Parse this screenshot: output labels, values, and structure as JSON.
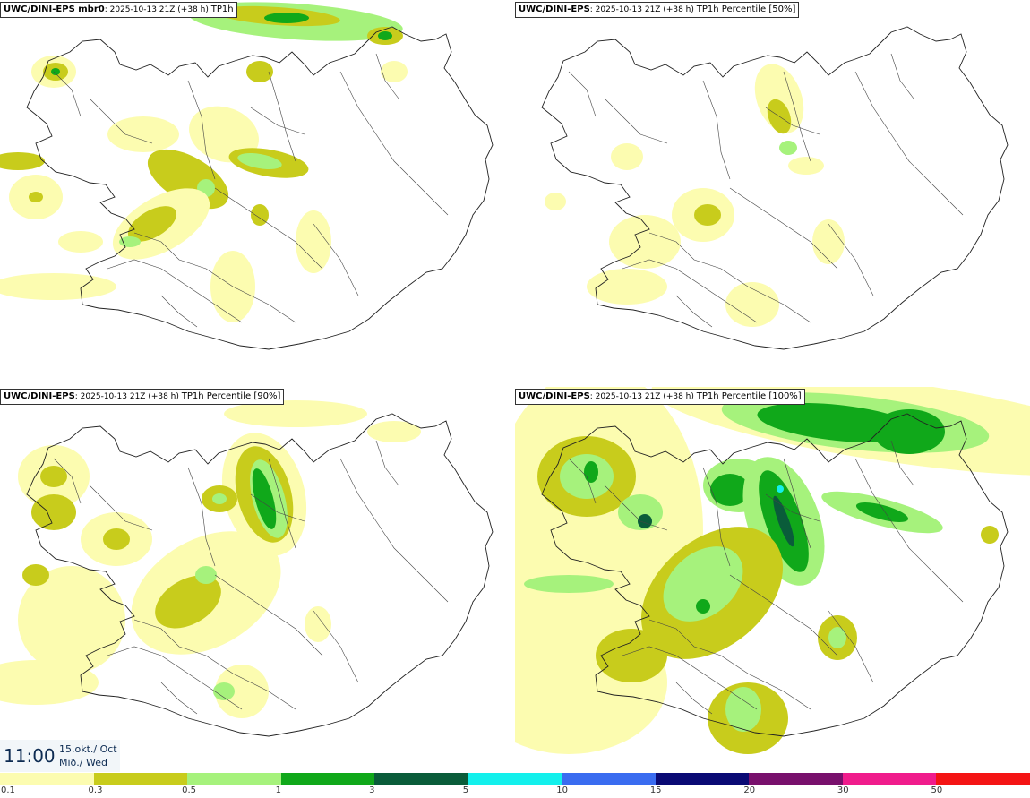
{
  "panels": [
    {
      "model": "UWC/DINI-EPS mbr0",
      "run": "2025-10-13 21Z (+38 h)",
      "suffix": "TP1h"
    },
    {
      "model": "UWC/DINI-EPS",
      "run": "2025-10-13 21Z (+38 h)",
      "suffix": "TP1h Percentile [50%]"
    },
    {
      "model": "UWC/DINI-EPS",
      "run": "2025-10-13 21Z (+38 h)",
      "suffix": "TP1h Percentile [90%]"
    },
    {
      "model": "UWC/DINI-EPS",
      "run": "2025-10-13 21Z (+38 h)",
      "suffix": "TP1h Percentile [100%]"
    }
  ],
  "clock": {
    "time": "11:00",
    "date_line1": "15.okt./ Oct",
    "date_line2": "Mið./ Wed"
  },
  "legend": {
    "ticks": [
      "0.1",
      "0.3",
      "0.5",
      "1",
      "3",
      "5",
      "10",
      "15",
      "20",
      "30",
      "50"
    ],
    "colors": [
      "#fcfcb0",
      "#c8cc1c",
      "#a6f27c",
      "#10a81a",
      "#0a5c3a",
      "#13f0ec",
      "#3a6cf0",
      "#0a0a74",
      "#78106c",
      "#f01c8c",
      "#f41414"
    ]
  },
  "map_colors": {
    "light": "#fcfcb0",
    "olive": "#c8cc1c",
    "lightgreen": "#a6f27c",
    "green": "#10a81a",
    "darkgreen": "#0a5c3a",
    "cyan": "#13f0ec"
  }
}
